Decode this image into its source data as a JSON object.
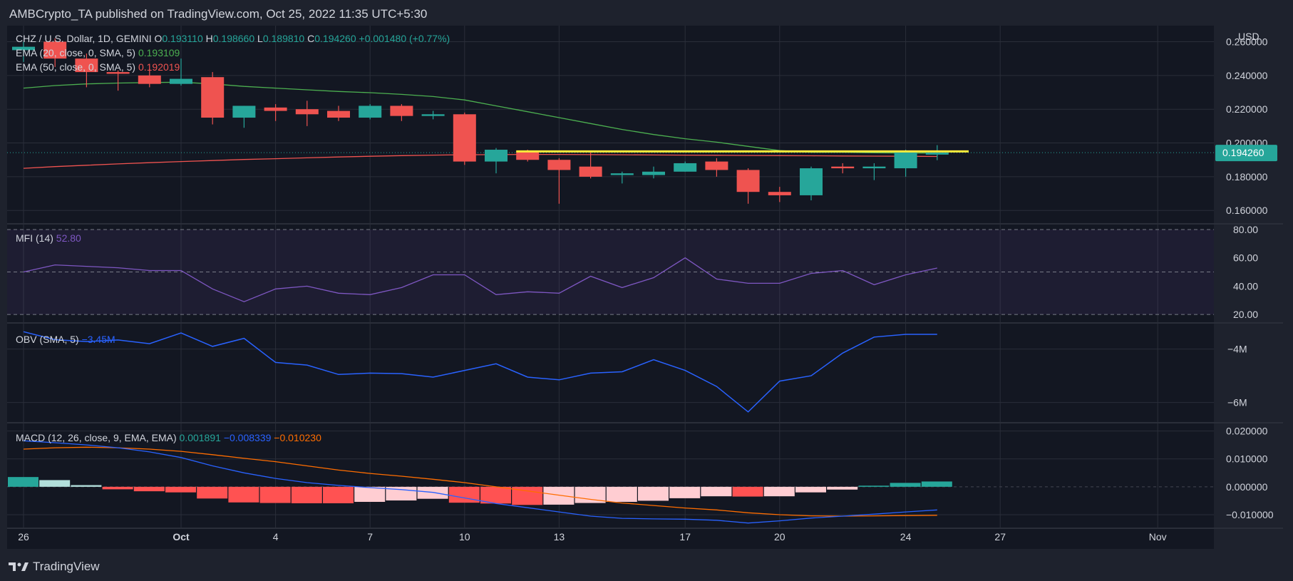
{
  "header": {
    "publisher_line": "AMBCrypto_TA published on TradingView.com, Oct 25, 2022 11:35 UTC+5:30"
  },
  "footer": {
    "brand": "TradingView"
  },
  "colors": {
    "background": "#1e222d",
    "pane": "#131722",
    "up": "#26a69a",
    "down": "#ef5350",
    "ema20": "#4caf50",
    "ema50": "#ef5350",
    "mfi": "#7e57c2",
    "obv": "#2962ff",
    "macd": "#2962ff",
    "signal": "#ff6d00",
    "hline": "#ffeb3b",
    "text": "#d1d4dc"
  },
  "chart_data": {
    "type": "candlestick",
    "symbol": "CHZ / U.S. Dollar, 1D, GEMINI",
    "ohlc_legend": {
      "O": "0.193110",
      "H": "0.198660",
      "L": "0.189810",
      "C": "0.194260",
      "change": "+0.001480 (+0.77%)"
    },
    "price_axis_unit": "USD",
    "price_label": "0.194260",
    "price_ticks": [
      "0.260000",
      "0.240000",
      "0.220000",
      "0.200000",
      "0.180000",
      "0.160000"
    ],
    "price_tick_values": [
      0.26,
      0.24,
      0.22,
      0.2,
      0.18,
      0.16
    ],
    "x_ticks": [
      {
        "label": "26",
        "day": 0
      },
      {
        "label": "Oct",
        "day": 5
      },
      {
        "label": "4",
        "day": 8
      },
      {
        "label": "7",
        "day": 11
      },
      {
        "label": "10",
        "day": 14
      },
      {
        "label": "13",
        "day": 17
      },
      {
        "label": "17",
        "day": 21
      },
      {
        "label": "20",
        "day": 24
      },
      {
        "label": "24",
        "day": 28
      },
      {
        "label": "27",
        "day": 31
      },
      {
        "label": "Nov",
        "day": 36
      }
    ],
    "candles": [
      {
        "date": "2022-09-26",
        "o": 0.255,
        "h": 0.26,
        "l": 0.248,
        "c": 0.257
      },
      {
        "date": "2022-09-27",
        "o": 0.26,
        "h": 0.262,
        "l": 0.245,
        "c": 0.25
      },
      {
        "date": "2022-09-28",
        "o": 0.25,
        "h": 0.253,
        "l": 0.233,
        "c": 0.242
      },
      {
        "date": "2022-09-29",
        "o": 0.242,
        "h": 0.243,
        "l": 0.231,
        "c": 0.241
      },
      {
        "date": "2022-09-30",
        "o": 0.24,
        "h": 0.244,
        "l": 0.233,
        "c": 0.235
      },
      {
        "date": "2022-10-01",
        "o": 0.235,
        "h": 0.25,
        "l": 0.234,
        "c": 0.238
      },
      {
        "date": "2022-10-02",
        "o": 0.239,
        "h": 0.242,
        "l": 0.211,
        "c": 0.215
      },
      {
        "date": "2022-10-03",
        "o": 0.215,
        "h": 0.222,
        "l": 0.209,
        "c": 0.222
      },
      {
        "date": "2022-10-04",
        "o": 0.221,
        "h": 0.223,
        "l": 0.213,
        "c": 0.219
      },
      {
        "date": "2022-10-05",
        "o": 0.22,
        "h": 0.225,
        "l": 0.21,
        "c": 0.217
      },
      {
        "date": "2022-10-06",
        "o": 0.219,
        "h": 0.222,
        "l": 0.213,
        "c": 0.215
      },
      {
        "date": "2022-10-07",
        "o": 0.215,
        "h": 0.223,
        "l": 0.214,
        "c": 0.222
      },
      {
        "date": "2022-10-08",
        "o": 0.222,
        "h": 0.223,
        "l": 0.213,
        "c": 0.216
      },
      {
        "date": "2022-10-09",
        "o": 0.216,
        "h": 0.219,
        "l": 0.214,
        "c": 0.217
      },
      {
        "date": "2022-10-10",
        "o": 0.217,
        "h": 0.218,
        "l": 0.187,
        "c": 0.189
      },
      {
        "date": "2022-10-11",
        "o": 0.189,
        "h": 0.197,
        "l": 0.182,
        "c": 0.196
      },
      {
        "date": "2022-10-12",
        "o": 0.195,
        "h": 0.196,
        "l": 0.189,
        "c": 0.19
      },
      {
        "date": "2022-10-13",
        "o": 0.19,
        "h": 0.191,
        "l": 0.164,
        "c": 0.184
      },
      {
        "date": "2022-10-14",
        "o": 0.186,
        "h": 0.195,
        "l": 0.179,
        "c": 0.18
      },
      {
        "date": "2022-10-15",
        "o": 0.181,
        "h": 0.183,
        "l": 0.176,
        "c": 0.182
      },
      {
        "date": "2022-10-16",
        "o": 0.181,
        "h": 0.186,
        "l": 0.179,
        "c": 0.183
      },
      {
        "date": "2022-10-17",
        "o": 0.183,
        "h": 0.189,
        "l": 0.183,
        "c": 0.188
      },
      {
        "date": "2022-10-18",
        "o": 0.189,
        "h": 0.191,
        "l": 0.18,
        "c": 0.184
      },
      {
        "date": "2022-10-19",
        "o": 0.184,
        "h": 0.185,
        "l": 0.164,
        "c": 0.171
      },
      {
        "date": "2022-10-20",
        "o": 0.171,
        "h": 0.174,
        "l": 0.165,
        "c": 0.169
      },
      {
        "date": "2022-10-21",
        "o": 0.169,
        "h": 0.186,
        "l": 0.166,
        "c": 0.185
      },
      {
        "date": "2022-10-22",
        "o": 0.186,
        "h": 0.188,
        "l": 0.182,
        "c": 0.185
      },
      {
        "date": "2022-10-23",
        "o": 0.185,
        "h": 0.188,
        "l": 0.178,
        "c": 0.186
      },
      {
        "date": "2022-10-24",
        "o": 0.185,
        "h": 0.196,
        "l": 0.18,
        "c": 0.195
      },
      {
        "date": "2022-10-25",
        "o": 0.1931,
        "h": 0.1987,
        "l": 0.1898,
        "c": 0.1943
      }
    ],
    "horizontal_line": {
      "price": 0.195,
      "from_day": 16,
      "to_day": 30
    },
    "last_price": 0.19426,
    "ema20": {
      "legend": "EMA (20, close, 0, SMA, 5)",
      "value_label": "0.193109",
      "values": [
        0.2325,
        0.234,
        0.235,
        0.2355,
        0.2358,
        0.236,
        0.235,
        0.2335,
        0.2325,
        0.2315,
        0.2305,
        0.2298,
        0.2288,
        0.2275,
        0.2255,
        0.222,
        0.2185,
        0.215,
        0.2115,
        0.208,
        0.205,
        0.2025,
        0.2005,
        0.198,
        0.1955,
        0.1945,
        0.1945,
        0.1942,
        0.194,
        0.194
      ]
    },
    "ema50": {
      "legend": "EMA (50, close, 0, SMA, 5)",
      "value_label": "0.192019",
      "values": [
        0.185,
        0.186,
        0.1868,
        0.1876,
        0.1883,
        0.189,
        0.1896,
        0.1902,
        0.1907,
        0.1912,
        0.1917,
        0.1921,
        0.1925,
        0.1928,
        0.193,
        0.1931,
        0.1932,
        0.1932,
        0.1931,
        0.193,
        0.1929,
        0.1928,
        0.1927,
        0.1926,
        0.1925,
        0.1924,
        0.1923,
        0.1922,
        0.1921,
        0.192
      ]
    },
    "mfi": {
      "legend": "MFI (14)",
      "value_label": "52.80",
      "ticks": [
        "80.00",
        "60.00",
        "40.00",
        "20.00"
      ],
      "tick_values": [
        80,
        60,
        40,
        20
      ],
      "band": [
        20,
        80
      ],
      "midline": 50,
      "values": [
        50,
        55,
        54,
        53,
        51,
        51,
        38,
        29,
        38,
        40,
        35,
        34,
        39,
        48,
        48,
        34,
        36,
        35,
        47,
        39,
        46,
        60,
        45,
        42,
        42,
        49,
        51,
        41,
        48,
        52.8
      ]
    },
    "obv": {
      "legend": "OBV (SMA, 5)",
      "value_label": "−3.45M",
      "ticks": [
        "−4M",
        "−6M"
      ],
      "tick_values": [
        -4,
        -6
      ],
      "values": [
        -3.35,
        -3.65,
        -3.72,
        -3.66,
        -3.8,
        -3.4,
        -3.9,
        -3.6,
        -4.5,
        -4.6,
        -4.95,
        -4.9,
        -4.92,
        -5.05,
        -4.8,
        -4.55,
        -5.05,
        -5.15,
        -4.9,
        -4.85,
        -4.4,
        -4.8,
        -5.4,
        -6.35,
        -5.2,
        -5.0,
        -4.15,
        -3.55,
        -3.45,
        -3.45
      ]
    },
    "macd": {
      "legend": "MACD (12, 26, close, 9, EMA, EMA)",
      "value_labels": [
        "0.001891",
        "−0.008339",
        "−0.010230"
      ],
      "ticks": [
        "0.020000",
        "0.010000",
        "0.000000",
        "−0.010000"
      ],
      "tick_values": [
        0.02,
        0.01,
        0,
        -0.01
      ],
      "hist": [
        0.0035,
        0.0024,
        0.0006,
        -0.0009,
        -0.0016,
        -0.002,
        -0.0042,
        -0.0056,
        -0.0058,
        -0.0059,
        -0.0059,
        -0.0054,
        -0.0049,
        -0.0043,
        -0.0057,
        -0.006,
        -0.0065,
        -0.0064,
        -0.0058,
        -0.0054,
        -0.005,
        -0.0041,
        -0.0034,
        -0.0035,
        -0.0034,
        -0.002,
        -0.001,
        0.0004,
        0.0014,
        0.0019
      ],
      "macd": [
        0.0165,
        0.0158,
        0.015,
        0.014,
        0.0125,
        0.0105,
        0.0075,
        0.005,
        0.003,
        0.0015,
        0.0005,
        -0.0003,
        -0.001,
        -0.002,
        -0.004,
        -0.006,
        -0.0075,
        -0.009,
        -0.0105,
        -0.0113,
        -0.0115,
        -0.0116,
        -0.012,
        -0.013,
        -0.0122,
        -0.0112,
        -0.0105,
        -0.0098,
        -0.009,
        -0.0083
      ],
      "signal": [
        0.0135,
        0.014,
        0.0142,
        0.014,
        0.0135,
        0.0127,
        0.0115,
        0.0102,
        0.009,
        0.0075,
        0.006,
        0.0048,
        0.0038,
        0.0027,
        0.0015,
        0.0,
        -0.0015,
        -0.003,
        -0.0045,
        -0.0058,
        -0.0067,
        -0.0076,
        -0.0083,
        -0.0093,
        -0.01,
        -0.0104,
        -0.0105,
        -0.0104,
        -0.0103,
        -0.0102
      ]
    },
    "grid": true,
    "legend_placement": "top-left"
  }
}
